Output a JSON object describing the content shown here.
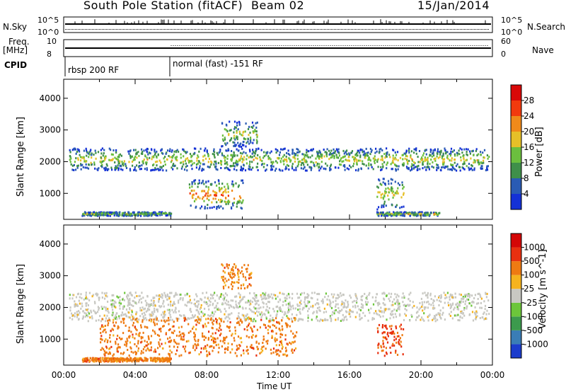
{
  "header": {
    "station_title": "South Pole Station (fitACF)",
    "beam": "Beam 02",
    "date": "15/Jan/2014"
  },
  "strips": {
    "nsky_label": "N.Sky",
    "nsky_ticks": [
      "10^5",
      "10^0"
    ],
    "nsearch_label": "N.Search",
    "nsearch_ticks": [
      "10^5",
      "10^0"
    ],
    "freq_label_line1": "Freq.",
    "freq_label_line2": "[MHz]",
    "freq_ticks": [
      "10",
      "8"
    ],
    "nave_label": "Nave",
    "nave_ticks": [
      "60",
      "0"
    ],
    "cpid_label": "CPID",
    "cpid_modes": [
      "rbsp 200 RF",
      "normal (fast) -151 RF"
    ],
    "cpid_switch_hour": 6.0
  },
  "chart_data": [
    {
      "type": "heatmap",
      "panel": "power",
      "ylabel": "Slant Range [km]",
      "ylim": [
        180,
        4600
      ],
      "yticks": [
        "1000",
        "2000",
        "3000",
        "4000"
      ],
      "xlim_hours": [
        0,
        24
      ],
      "colorbar_label": "Power [dB]",
      "colorbar_ticks": [
        "4",
        "8",
        "12",
        "16",
        "20",
        "24",
        "28"
      ],
      "colorbar_colors": [
        "#1431d6",
        "#2a5bb4",
        "#3f8f4a",
        "#6bbf3e",
        "#e6c028",
        "#f08a1a",
        "#f23a0e",
        "#d90808"
      ],
      "echo_bands": [
        {
          "hours": [
            0.3,
            23.8
          ],
          "center_km": 2100,
          "width_km": 350,
          "intensity": 0.55
        },
        {
          "hours": [
            7.0,
            10.0
          ],
          "center_km": 1000,
          "width_km": 450,
          "intensity": 0.85
        },
        {
          "hours": [
            8.8,
            10.8
          ],
          "center_km": 2900,
          "width_km": 400,
          "intensity": 0.5
        },
        {
          "hours": [
            17.5,
            19.0
          ],
          "center_km": 1000,
          "width_km": 500,
          "intensity": 0.6
        },
        {
          "hours": [
            1.0,
            6.0
          ],
          "center_km": 380,
          "width_km": 60,
          "intensity": 0.5
        },
        {
          "hours": [
            17.5,
            21.0
          ],
          "center_km": 380,
          "width_km": 60,
          "intensity": 0.6
        }
      ]
    },
    {
      "type": "heatmap",
      "panel": "velocity",
      "ylabel": "Slant Range [km]",
      "ylim": [
        180,
        4600
      ],
      "yticks": [
        "1000",
        "2000",
        "3000",
        "4000"
      ],
      "xlim_hours": [
        0,
        24
      ],
      "xticks": [
        "00:00",
        "04:00",
        "08:00",
        "12:00",
        "16:00",
        "20:00",
        "00:00"
      ],
      "xlabel": "Time UT",
      "colorbar_label": "Velocity [m s^-1]",
      "colorbar_ticks": [
        "1000",
        "500",
        "100",
        "25",
        "-25",
        "-100",
        "-500",
        "-1000"
      ],
      "colorbar_colors": [
        "#1c3ccc",
        "#3a7db6",
        "#3c9a4d",
        "#6cc63a",
        "#c8c8c2",
        "#f5b31e",
        "#ee7a12",
        "#e83010",
        "#d40606"
      ],
      "echo_bands": [
        {
          "hours": [
            0.3,
            23.8
          ],
          "center_km": 2050,
          "width_km": 450,
          "class": "ground scatter (gray)"
        },
        {
          "hours": [
            2.0,
            13.0
          ],
          "center_km": 1100,
          "width_km": 600,
          "class": "negative velocity (orange)"
        },
        {
          "hours": [
            8.8,
            10.5
          ],
          "center_km": 3000,
          "width_km": 400,
          "class": "negative velocity (orange)"
        },
        {
          "hours": [
            17.5,
            19.0
          ],
          "center_km": 1000,
          "width_km": 500,
          "class": "negative velocity (red)"
        },
        {
          "hours": [
            1.0,
            6.0
          ],
          "center_km": 380,
          "width_km": 60,
          "class": "negative velocity (orange)"
        }
      ]
    }
  ]
}
